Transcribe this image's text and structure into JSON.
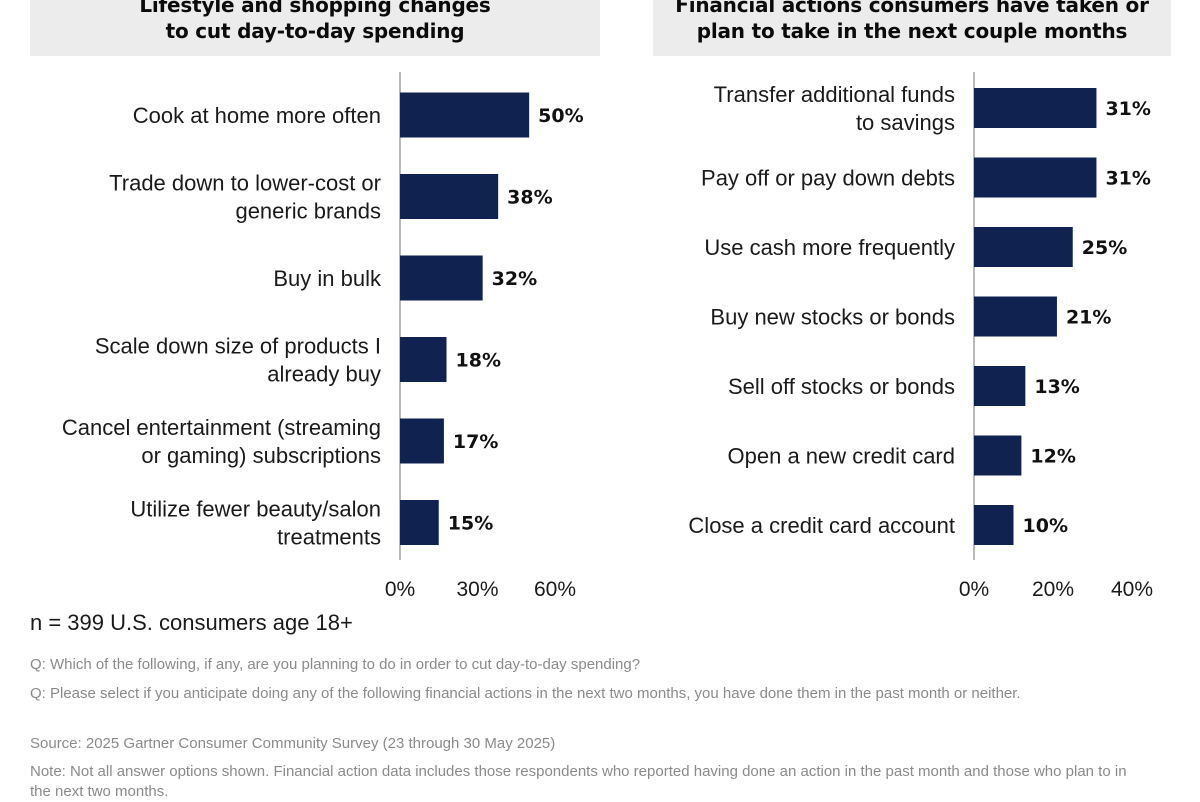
{
  "chart_data": [
    {
      "type": "bar",
      "orientation": "horizontal",
      "title_lines": [
        "Lifestyle and shopping changes",
        "to cut day-to-day spending"
      ],
      "categories": [
        [
          "Cook at home more often"
        ],
        [
          "Trade down to lower-cost or",
          "generic brands"
        ],
        [
          "Buy in bulk"
        ],
        [
          "Scale down size of products I",
          "already buy"
        ],
        [
          "Cancel entertainment (streaming",
          "or gaming) subscriptions"
        ],
        [
          "Utilize fewer beauty/salon",
          "treatments"
        ]
      ],
      "values": [
        50,
        38,
        32,
        18,
        17,
        15
      ],
      "value_labels": [
        "50%",
        "38%",
        "32%",
        "18%",
        "17%",
        "15%"
      ],
      "xlim": [
        0,
        60
      ],
      "x_ticks": [
        "0%",
        "30%",
        "60%"
      ],
      "bar_color": "#0f2250",
      "grid": false
    },
    {
      "type": "bar",
      "orientation": "horizontal",
      "title_lines": [
        "Financial actions consumers have taken or",
        "plan to take in the next couple months"
      ],
      "categories": [
        [
          "Transfer additional funds",
          "to savings"
        ],
        [
          "Pay off or pay down debts"
        ],
        [
          "Use cash more frequently"
        ],
        [
          "Buy new stocks or bonds"
        ],
        [
          "Sell off stocks or bonds"
        ],
        [
          "Open a new credit card"
        ],
        [
          "Close a credit card account"
        ]
      ],
      "values": [
        31,
        31,
        25,
        21,
        13,
        12,
        10
      ],
      "value_labels": [
        "31%",
        "31%",
        "25%",
        "21%",
        "13%",
        "12%",
        "10%"
      ],
      "xlim": [
        0,
        40
      ],
      "x_ticks": [
        "0%",
        "20%",
        "40%"
      ],
      "bar_color": "#0f2250",
      "grid": false
    }
  ],
  "sample_note": "n = 399 U.S. consumers age 18+",
  "footnotes": [
    "Q: Which of the following, if any, are you planning to do in order to cut day-to-day spending?",
    "Q: Please select if you anticipate doing any of the following financial actions in the next two months, you have done them in the past month or neither.",
    "Source: 2025 Gartner Consumer Community Survey (23 through 30 May 2025)",
    "Note: Not all answer options shown. Financial action data includes those respondents who reported having done an action in the past month and those who plan to in the next two months."
  ]
}
